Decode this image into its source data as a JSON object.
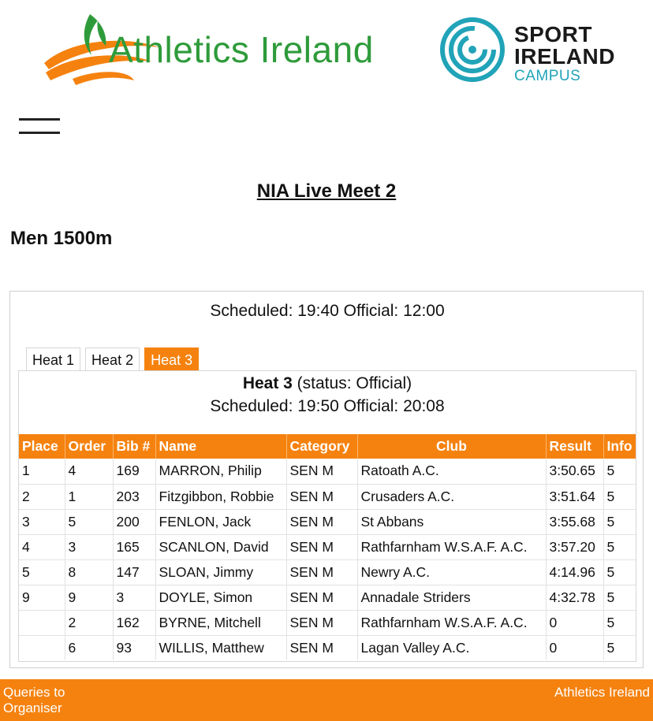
{
  "header": {
    "athletics_logo_text": "Athletics Ireland",
    "sport_logo_line1": "SPORT",
    "sport_logo_line2": "IRELAND",
    "sport_logo_line3": "CAMPUS"
  },
  "colors": {
    "accent_orange": "#f5820f",
    "athletics_green": "#2e9b3a",
    "sport_teal": "#21a3b8"
  },
  "meet_title": "NIA Live Meet 2",
  "event_title": "Men 1500m",
  "scheduled_line": "Scheduled: 19:40 Official: 12:00",
  "tabs": [
    {
      "label": "Heat 1",
      "active": false
    },
    {
      "label": "Heat 2",
      "active": false
    },
    {
      "label": "Heat 3",
      "active": true
    }
  ],
  "heat": {
    "name": "Heat 3",
    "status": " (status: Official)",
    "scheduled": "Scheduled: 19:50 Official: 20:08"
  },
  "table": {
    "columns": [
      "Place",
      "Order",
      "Bib #",
      "Name",
      "Category",
      "Club",
      "Result",
      "Info"
    ],
    "rows": [
      [
        "1",
        "4",
        "169",
        "MARRON, Philip",
        "SEN M",
        "Ratoath A.C.",
        "3:50.65",
        "5"
      ],
      [
        "2",
        "1",
        "203",
        "Fitzgibbon, Robbie",
        "SEN M",
        "Crusaders A.C.",
        "3:51.64",
        "5"
      ],
      [
        "3",
        "5",
        "200",
        "FENLON, Jack",
        "SEN M",
        "St Abbans",
        "3:55.68",
        "5"
      ],
      [
        "4",
        "3",
        "165",
        "SCANLON, David",
        "SEN M",
        "Rathfarnham W.S.A.F. A.C.",
        "3:57.20",
        "5"
      ],
      [
        "5",
        "8",
        "147",
        "SLOAN, Jimmy",
        "SEN M",
        "Newry A.C.",
        "4:14.96",
        "5"
      ],
      [
        "9",
        "9",
        "3",
        "DOYLE, Simon",
        "SEN M",
        "Annadale Striders",
        "4:32.78",
        "5"
      ],
      [
        "",
        "2",
        "162",
        "BYRNE, Mitchell",
        "SEN M",
        "Rathfarnham W.S.A.F. A.C.",
        "0",
        "5"
      ],
      [
        "",
        "6",
        "93",
        "WILLIS, Matthew",
        "SEN M",
        "Lagan Valley A.C.",
        "0",
        "5"
      ]
    ]
  },
  "footer": {
    "left_link": "Queries to Organiser",
    "right_link": "Athletics Ireland"
  }
}
